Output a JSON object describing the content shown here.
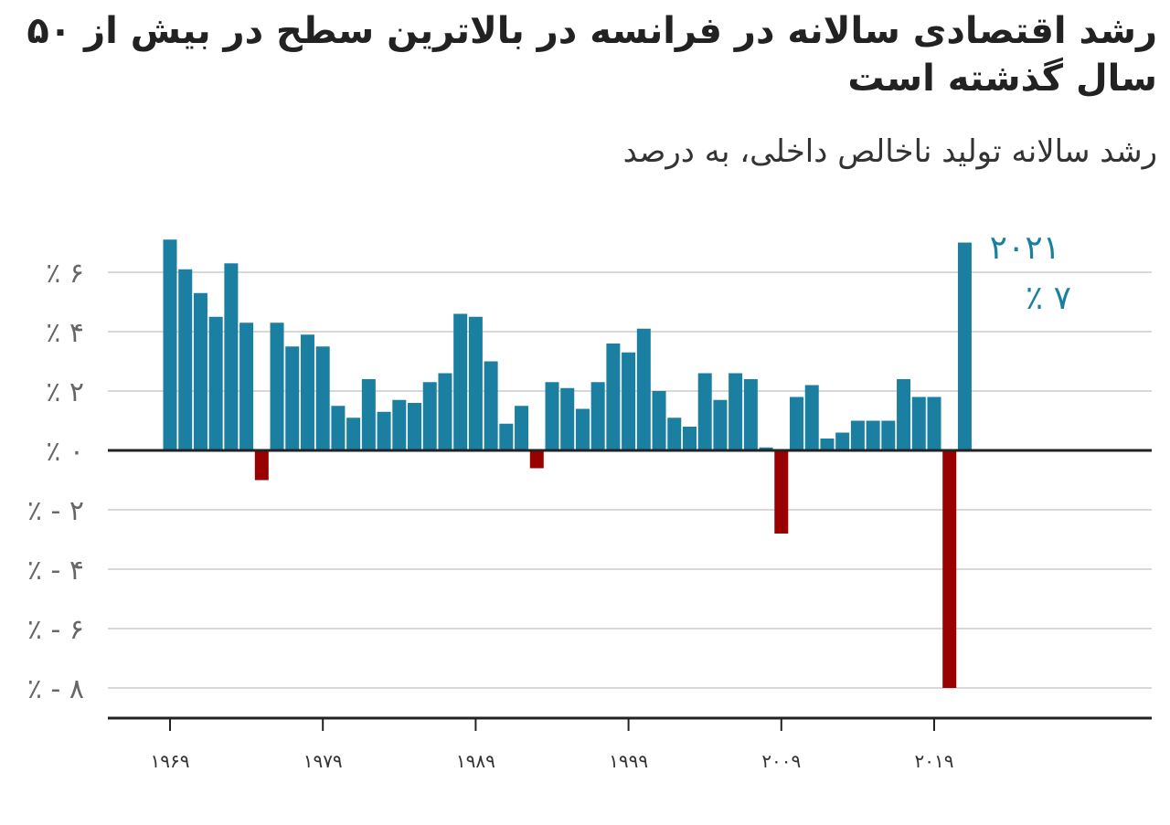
{
  "title": "رشد اقتصادی سالانه در فرانسه در بالاترین سطح در بیش از ۵۰ سال گذشته است",
  "subtitle": "رشد سالانه تولید ناخالص داخلی، به درصد",
  "colors": {
    "positive": "#1a7fa0",
    "negative": "#990000",
    "grid": "#cccccc",
    "axis": "#222222"
  },
  "chart_data": {
    "type": "bar",
    "title": "رشد اقتصادی سالانه در فرانسه در بالاترین سطح در بیش از ۵۰ سال گذشته است",
    "subtitle": "رشد سالانه تولید ناخالص داخلی، به درصد",
    "x": [
      1969,
      1970,
      1971,
      1972,
      1973,
      1974,
      1975,
      1976,
      1977,
      1978,
      1979,
      1980,
      1981,
      1982,
      1983,
      1984,
      1985,
      1986,
      1987,
      1988,
      1989,
      1990,
      1991,
      1992,
      1993,
      1994,
      1995,
      1996,
      1997,
      1998,
      1999,
      2000,
      2001,
      2002,
      2003,
      2004,
      2005,
      2006,
      2007,
      2008,
      2009,
      2010,
      2011,
      2012,
      2013,
      2014,
      2015,
      2016,
      2017,
      2018,
      2019,
      2020,
      2021
    ],
    "values": [
      7.1,
      6.1,
      5.3,
      4.5,
      6.3,
      4.3,
      -1.0,
      4.3,
      3.5,
      3.9,
      3.5,
      1.5,
      1.1,
      2.4,
      1.3,
      1.7,
      1.6,
      2.3,
      2.6,
      4.6,
      4.5,
      3.0,
      0.9,
      1.5,
      -0.6,
      2.3,
      2.1,
      1.4,
      2.3,
      3.6,
      3.3,
      4.1,
      2.0,
      1.1,
      0.8,
      2.6,
      1.7,
      2.6,
      2.4,
      0.1,
      -2.8,
      1.8,
      2.2,
      0.4,
      0.6,
      1.0,
      1.0,
      1.0,
      2.4,
      1.8,
      1.8,
      -8.0,
      7.0
    ],
    "ylim": [
      -9,
      7.5
    ],
    "y_ticks": [
      6,
      4,
      2,
      0,
      -2,
      -4,
      -6,
      -8
    ],
    "y_tick_labels": [
      "٪ ۶",
      "٪ ۴",
      "٪ ۲",
      "٪ ۰",
      "٪ - ۲",
      "٪ - ۴",
      "٪ - ۶",
      "٪ - ۸"
    ],
    "x_ticks": [
      1969,
      1979,
      1989,
      1999,
      2009,
      2019
    ],
    "x_tick_labels": [
      "۱۹۶۹",
      "۱۹۷۹",
      "۱۹۸۹",
      "۱۹۹۹",
      "۲۰۰۹",
      "۲۰۱۹"
    ],
    "annotation": {
      "year_label": "۲۰۲۱",
      "value_label": "٪ ۷"
    },
    "grid": true
  }
}
